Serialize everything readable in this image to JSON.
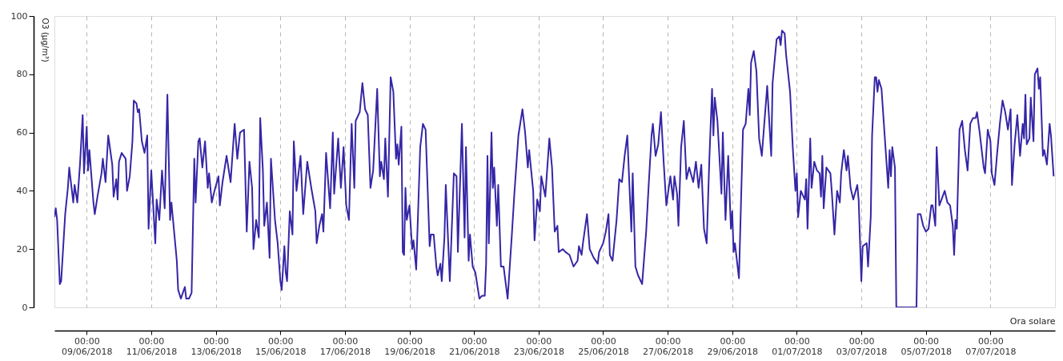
{
  "chart_data": {
    "type": "line",
    "ylabel": "O3 (µg/m³)",
    "xlabel": "Ora solare",
    "grid": "x",
    "xlim": [
      "2018-06-08T00:00",
      "2018-07-09T00:00"
    ],
    "ylim": [
      0,
      100
    ],
    "yticks": [
      0,
      20,
      40,
      60,
      80,
      100
    ],
    "xticks": [
      {
        "value": "2018-06-09T00:00",
        "label": "00:00\n09/06/2018"
      },
      {
        "value": "2018-06-11T00:00",
        "label": "00:00\n11/06/2018"
      },
      {
        "value": "2018-06-13T00:00",
        "label": "00:00\n13/06/2018"
      },
      {
        "value": "2018-06-15T00:00",
        "label": "00:00\n15/06/2018"
      },
      {
        "value": "2018-06-17T00:00",
        "label": "00:00\n17/06/2018"
      },
      {
        "value": "2018-06-19T00:00",
        "label": "00:00\n19/06/2018"
      },
      {
        "value": "2018-06-21T00:00",
        "label": "00:00\n21/06/2018"
      },
      {
        "value": "2018-06-23T00:00",
        "label": "00:00\n23/06/2018"
      },
      {
        "value": "2018-06-25T00:00",
        "label": "00:00\n25/06/2018"
      },
      {
        "value": "2018-06-27T00:00",
        "label": "00:00\n27/06/2018"
      },
      {
        "value": "2018-06-29T00:00",
        "label": "00:00\n29/06/2018"
      },
      {
        "value": "2018-07-01T00:00",
        "label": "00:00\n01/07/2018"
      },
      {
        "value": "2018-07-03T00:00",
        "label": "00:00\n03/07/2018"
      },
      {
        "value": "2018-07-05T00:00",
        "label": "00:00\n05/07/2018"
      },
      {
        "value": "2018-07-07T00:00",
        "label": "00:00\n07/07/2018"
      }
    ],
    "x": [
      "2018-06-08T00:00",
      "2018-06-08T01:00",
      "2018-06-08T02:00",
      "2018-06-08T04:00",
      "2018-06-08T05:00",
      "2018-06-08T08:00",
      "2018-06-08T10:00",
      "2018-06-08T11:00",
      "2018-06-08T13:00",
      "2018-06-08T14:00",
      "2018-06-08T15:00",
      "2018-06-08T17:00",
      "2018-06-08T19:00",
      "2018-06-08T21:00",
      "2018-06-08T22:00",
      "2018-06-09T00:00",
      "2018-06-09T01:00",
      "2018-06-09T02:00",
      "2018-06-09T05:00",
      "2018-06-09T06:00",
      "2018-06-09T08:00",
      "2018-06-09T11:00",
      "2018-06-09T12:00",
      "2018-06-09T14:00",
      "2018-06-09T16:00",
      "2018-06-09T19:00",
      "2018-06-09T20:00",
      "2018-06-09T22:00",
      "2018-06-09T23:00",
      "2018-06-10T00:00",
      "2018-06-10T02:00",
      "2018-06-10T05:00",
      "2018-06-10T06:00",
      "2018-06-10T08:00",
      "2018-06-10T10:00",
      "2018-06-10T11:00",
      "2018-06-10T13:00",
      "2018-06-10T14:00",
      "2018-06-10T15:00",
      "2018-06-10T17:00",
      "2018-06-10T19:00",
      "2018-06-10T21:00",
      "2018-06-10T22:00",
      "2018-06-11T00:00",
      "2018-06-11T03:00",
      "2018-06-11T04:00",
      "2018-06-11T06:00",
      "2018-06-11T08:00",
      "2018-06-11T10:00",
      "2018-06-11T12:00",
      "2018-06-11T14:00",
      "2018-06-11T15:00",
      "2018-06-11T19:00",
      "2018-06-11T20:00",
      "2018-06-11T22:00",
      "2018-06-12T01:00",
      "2018-06-12T02:00",
      "2018-06-12T04:00",
      "2018-06-12T06:00",
      "2018-06-12T08:00",
      "2018-06-12T09:00",
      "2018-06-12T11:00",
      "2018-06-12T12:00",
      "2018-06-12T14:00",
      "2018-06-12T16:00",
      "2018-06-12T18:00",
      "2018-06-12T19:00",
      "2018-06-12T21:00",
      "2018-06-12T23:00",
      "2018-06-13T02:00",
      "2018-06-13T03:00",
      "2018-06-13T05:00",
      "2018-06-13T08:00",
      "2018-06-13T11:00",
      "2018-06-13T14:00",
      "2018-06-13T16:00",
      "2018-06-13T18:00",
      "2018-06-13T21:00",
      "2018-06-13T23:00",
      "2018-06-14T01:00",
      "2018-06-14T03:00",
      "2018-06-14T04:00",
      "2018-06-14T06:00",
      "2018-06-14T08:00",
      "2018-06-14T09:00",
      "2018-06-14T11:00",
      "2018-06-14T12:00",
      "2018-06-14T14:00",
      "2018-06-14T16:00",
      "2018-06-14T17:00",
      "2018-06-14T20:00",
      "2018-06-14T22:00",
      "2018-06-15T00:00",
      "2018-06-15T01:00",
      "2018-06-15T03:00",
      "2018-06-15T04:00",
      "2018-06-15T05:00",
      "2018-06-15T07:00",
      "2018-06-15T09:00",
      "2018-06-15T10:00",
      "2018-06-15T12:00",
      "2018-06-15T15:00",
      "2018-06-15T17:00",
      "2018-06-15T20:00",
      "2018-06-15T23:00",
      "2018-06-16T02:00",
      "2018-06-16T03:00",
      "2018-06-16T05:00",
      "2018-06-16T07:00",
      "2018-06-16T08:00",
      "2018-06-16T10:00",
      "2018-06-16T13:00",
      "2018-06-16T15:00",
      "2018-06-16T16:00",
      "2018-06-16T19:00",
      "2018-06-16T21:00",
      "2018-06-16T23:00",
      "2018-06-17T01:00",
      "2018-06-17T03:00",
      "2018-06-17T05:00",
      "2018-06-17T07:00",
      "2018-06-17T08:00",
      "2018-06-17T11:00",
      "2018-06-17T13:00",
      "2018-06-17T15:00",
      "2018-06-17T17:00",
      "2018-06-17T19:00",
      "2018-06-17T21:00",
      "2018-06-18T00:00",
      "2018-06-18T02:00",
      "2018-06-18T03:00",
      "2018-06-18T05:00",
      "2018-06-18T06:00",
      "2018-06-18T08:00",
      "2018-06-18T10:00",
      "2018-06-18T12:00",
      "2018-06-18T14:00",
      "2018-06-18T15:00",
      "2018-06-18T16:00",
      "2018-06-18T18:00",
      "2018-06-18T19:00",
      "2018-06-18T20:00",
      "2018-06-18T21:00",
      "2018-06-18T22:00",
      "2018-06-19T00:00",
      "2018-06-19T02:00",
      "2018-06-19T03:00",
      "2018-06-19T05:00",
      "2018-06-19T08:00",
      "2018-06-19T10:00",
      "2018-06-19T12:00",
      "2018-06-19T15:00",
      "2018-06-19T16:00",
      "2018-06-19T18:00",
      "2018-06-19T20:00",
      "2018-06-19T21:00",
      "2018-06-19T23:00",
      "2018-06-20T00:00",
      "2018-06-20T02:00",
      "2018-06-20T03:00",
      "2018-06-20T06:00",
      "2018-06-20T09:00",
      "2018-06-20T11:00",
      "2018-06-20T12:00",
      "2018-06-20T15:00",
      "2018-06-20T17:00",
      "2018-06-20T18:00",
      "2018-06-20T20:00",
      "2018-06-20T21:00",
      "2018-06-20T23:00",
      "2018-06-21T01:00",
      "2018-06-21T04:00",
      "2018-06-21T06:00",
      "2018-06-21T08:00",
      "2018-06-21T09:00",
      "2018-06-21T10:00",
      "2018-06-21T11:00",
      "2018-06-21T13:00",
      "2018-06-21T14:00",
      "2018-06-21T15:00",
      "2018-06-21T17:00",
      "2018-06-21T18:00",
      "2018-06-21T20:00",
      "2018-06-21T22:00",
      "2018-06-22T01:00",
      "2018-06-22T04:00",
      "2018-06-22T06:00",
      "2018-06-22T09:00",
      "2018-06-22T12:00",
      "2018-06-22T14:00",
      "2018-06-22T16:00",
      "2018-06-22T17:00",
      "2018-06-22T20:00",
      "2018-06-22T21:00",
      "2018-06-22T22:00",
      "2018-06-22T23:00",
      "2018-06-23T01:00",
      "2018-06-23T02:00",
      "2018-06-23T05:00",
      "2018-06-23T08:00",
      "2018-06-23T10:00",
      "2018-06-23T12:00",
      "2018-06-23T14:00",
      "2018-06-23T15:00",
      "2018-06-23T18:00",
      "2018-06-23T20:00",
      "2018-06-23T23:00",
      "2018-06-24T02:00",
      "2018-06-24T05:00",
      "2018-06-24T06:00",
      "2018-06-24T08:00",
      "2018-06-24T09:00",
      "2018-06-24T12:00",
      "2018-06-24T14:00",
      "2018-06-24T17:00",
      "2018-06-24T20:00",
      "2018-06-24T21:00",
      "2018-06-25T00:00",
      "2018-06-25T02:00",
      "2018-06-25T04:00",
      "2018-06-25T05:00",
      "2018-06-25T07:00",
      "2018-06-25T10:00",
      "2018-06-25T12:00",
      "2018-06-25T14:00",
      "2018-06-25T16:00",
      "2018-06-25T18:00",
      "2018-06-25T21:00",
      "2018-06-25T22:00",
      "2018-06-26T00:00",
      "2018-06-26T02:00",
      "2018-06-26T05:00",
      "2018-06-26T08:00",
      "2018-06-26T10:00",
      "2018-06-26T12:00",
      "2018-06-26T13:00",
      "2018-06-26T15:00",
      "2018-06-26T17:00",
      "2018-06-26T19:00",
      "2018-06-26T21:00",
      "2018-06-26T23:00",
      "2018-06-27T02:00",
      "2018-06-27T04:00",
      "2018-06-27T05:00",
      "2018-06-27T07:00",
      "2018-06-27T08:00",
      "2018-06-27T10:00",
      "2018-06-27T12:00",
      "2018-06-27T14:00",
      "2018-06-27T16:00",
      "2018-06-27T19:00",
      "2018-06-27T21:00",
      "2018-06-27T23:00",
      "2018-06-28T01:00",
      "2018-06-28T03:00",
      "2018-06-28T05:00",
      "2018-06-28T07:00",
      "2018-06-28T09:00",
      "2018-06-28T10:00",
      "2018-06-28T11:00",
      "2018-06-28T13:00",
      "2018-06-28T16:00",
      "2018-06-28T17:00",
      "2018-06-28T19:00",
      "2018-06-28T21:00",
      "2018-06-28T23:00",
      "2018-06-29T00:00",
      "2018-06-29T01:00",
      "2018-06-29T02:00",
      "2018-06-29T05:00",
      "2018-06-29T08:00",
      "2018-06-29T10:00",
      "2018-06-29T12:00",
      "2018-06-29T13:00",
      "2018-06-29T14:00",
      "2018-06-29T16:00",
      "2018-06-29T18:00",
      "2018-06-29T20:00",
      "2018-06-29T22:00",
      "2018-06-30T02:00",
      "2018-06-30T05:00",
      "2018-06-30T06:00",
      "2018-06-30T09:00",
      "2018-06-30T11:00",
      "2018-06-30T12:00",
      "2018-06-30T13:00",
      "2018-06-30T15:00",
      "2018-06-30T16:00",
      "2018-06-30T19:00",
      "2018-06-30T21:00",
      "2018-06-30T23:00",
      "2018-07-01T00:00",
      "2018-07-01T01:00",
      "2018-07-01T03:00",
      "2018-07-01T06:00",
      "2018-07-01T07:00",
      "2018-07-01T08:00",
      "2018-07-01T10:00",
      "2018-07-01T11:00",
      "2018-07-01T13:00",
      "2018-07-01T15:00",
      "2018-07-01T17:00",
      "2018-07-01T18:00",
      "2018-07-01T19:00",
      "2018-07-01T20:00",
      "2018-07-01T22:00",
      "2018-07-02T01:00",
      "2018-07-02T02:00",
      "2018-07-02T04:00",
      "2018-07-02T06:00",
      "2018-07-02T08:00",
      "2018-07-02T09:00",
      "2018-07-02T11:00",
      "2018-07-02T13:00",
      "2018-07-02T14:00",
      "2018-07-02T16:00",
      "2018-07-02T18:00",
      "2018-07-02T21:00",
      "2018-07-02T22:00",
      "2018-07-03T00:00",
      "2018-07-03T01:00",
      "2018-07-03T04:00",
      "2018-07-03T05:00",
      "2018-07-03T07:00",
      "2018-07-03T08:00",
      "2018-07-03T10:00",
      "2018-07-03T11:00",
      "2018-07-03T12:00",
      "2018-07-03T13:00",
      "2018-07-03T15:00",
      "2018-07-03T20:00",
      "2018-07-03T21:00",
      "2018-07-03T22:00",
      "2018-07-03T23:00",
      "2018-07-04T01:00",
      "2018-07-04T02:00",
      "2018-07-04T17:00",
      "2018-07-04T18:00",
      "2018-07-04T20:00",
      "2018-07-04T22:00",
      "2018-07-05T00:00",
      "2018-07-05T02:00",
      "2018-07-05T04:00",
      "2018-07-05T05:00",
      "2018-07-05T07:00",
      "2018-07-05T08:00",
      "2018-07-05T10:00",
      "2018-07-05T14:00",
      "2018-07-05T16:00",
      "2018-07-05T18:00",
      "2018-07-05T20:00",
      "2018-07-05T21:00",
      "2018-07-05T22:00",
      "2018-07-05T23:00",
      "2018-07-06T01:00",
      "2018-07-06T03:00",
      "2018-07-06T05:00",
      "2018-07-06T07:00",
      "2018-07-06T09:00",
      "2018-07-06T11:00",
      "2018-07-06T13:00",
      "2018-07-06T14:00",
      "2018-07-06T16:00",
      "2018-07-06T19:00",
      "2018-07-06T20:00",
      "2018-07-06T22:00",
      "2018-07-07T00:00",
      "2018-07-07T01:00",
      "2018-07-07T03:00",
      "2018-07-07T05:00",
      "2018-07-07T07:00",
      "2018-07-07T09:00",
      "2018-07-07T11:00",
      "2018-07-07T13:00",
      "2018-07-07T15:00",
      "2018-07-07T16:00",
      "2018-07-07T18:00",
      "2018-07-07T20:00",
      "2018-07-07T22:00",
      "2018-07-08T00:00",
      "2018-07-08T01:00",
      "2018-07-08T02:00",
      "2018-07-08T03:00",
      "2018-07-08T05:00",
      "2018-07-08T06:00",
      "2018-07-08T08:00",
      "2018-07-08T09:00",
      "2018-07-08T11:00",
      "2018-07-08T12:00",
      "2018-07-08T13:00",
      "2018-07-08T15:00",
      "2018-07-08T16:00",
      "2018-07-08T18:00",
      "2018-07-08T20:00",
      "2018-07-08T21:00",
      "2018-07-08T23:00"
    ],
    "series": [
      {
        "color": "#3526a6",
        "values": [
          31,
          34,
          30,
          8,
          9,
          32,
          41,
          48,
          40,
          36,
          42,
          36,
          49,
          66,
          46,
          62,
          47,
          54,
          36,
          32,
          38,
          46,
          51,
          43,
          59,
          49,
          38,
          44,
          37,
          50,
          53,
          51,
          40,
          45,
          57,
          71,
          70,
          67,
          68,
          57,
          53,
          59,
          27,
          47,
          22,
          37,
          30,
          47,
          34,
          73,
          30,
          36,
          16,
          6,
          3,
          7,
          3,
          3,
          5,
          51,
          36,
          57,
          58,
          48,
          57,
          41,
          46,
          36,
          40,
          45,
          35,
          43,
          52,
          43,
          63,
          51,
          60,
          61,
          26,
          50,
          41,
          20,
          30,
          24,
          65,
          47,
          28,
          36,
          17,
          51,
          30,
          22,
          9,
          6,
          21,
          12,
          9,
          33,
          25,
          57,
          40,
          52,
          32,
          50,
          41,
          33,
          22,
          28,
          32,
          26,
          53,
          34,
          60,
          39,
          58,
          41,
          55,
          35,
          30,
          63,
          41,
          64,
          67,
          77,
          68,
          66,
          41,
          47,
          75,
          45,
          50,
          44,
          58,
          38,
          79,
          74,
          51,
          56,
          49,
          62,
          19,
          18,
          41,
          30,
          35,
          20,
          23,
          13,
          55,
          63,
          61,
          21,
          25,
          25,
          14,
          11,
          15,
          9,
          24,
          42,
          9,
          46,
          45,
          19,
          63,
          24,
          55,
          16,
          25,
          14,
          12,
          3,
          4,
          4,
          15,
          52,
          22,
          60,
          41,
          48,
          28,
          42,
          14,
          14,
          3,
          24,
          39,
          59,
          68,
          60,
          48,
          54,
          40,
          23,
          30,
          37,
          33,
          45,
          38,
          58,
          48,
          26,
          28,
          19,
          20,
          19,
          18,
          14,
          16,
          21,
          18,
          22,
          32,
          20,
          17,
          15,
          19,
          22,
          26,
          32,
          18,
          16,
          30,
          44,
          43,
          52,
          59,
          26,
          46,
          14,
          11,
          8,
          26,
          43,
          59,
          63,
          52,
          56,
          67,
          50,
          35,
          45,
          37,
          45,
          39,
          28,
          55,
          64,
          44,
          48,
          43,
          50,
          41,
          49,
          27,
          22,
          51,
          75,
          59,
          72,
          64,
          39,
          60,
          30,
          52,
          27,
          33,
          19,
          22,
          10,
          61,
          63,
          75,
          66,
          84,
          88,
          81,
          58,
          52,
          76,
          52,
          77,
          92,
          93,
          90,
          95,
          94,
          87,
          74,
          55,
          40,
          46,
          31,
          40,
          37,
          44,
          27,
          58,
          41,
          50,
          47,
          46,
          38,
          52,
          34,
          48,
          46,
          40,
          25,
          40,
          36,
          46,
          54,
          47,
          52,
          41,
          37,
          42,
          37,
          9,
          21,
          22,
          14,
          31,
          59,
          79,
          79,
          74,
          78,
          75,
          41,
          54,
          45,
          55,
          48,
          0,
          0,
          32,
          32,
          28,
          26,
          27,
          35,
          35,
          28,
          55,
          35,
          40,
          36,
          35,
          28,
          18,
          30,
          27,
          61,
          64,
          54,
          47,
          63,
          65,
          65,
          67,
          60,
          48,
          46,
          61,
          57,
          46,
          42,
          53,
          63,
          71,
          67,
          61,
          68,
          42,
          56,
          66,
          52,
          63,
          58,
          73,
          56,
          58,
          72,
          57,
          80,
          82,
          75,
          79,
          52,
          54,
          49,
          63,
          59,
          45
        ]
      }
    ]
  }
}
